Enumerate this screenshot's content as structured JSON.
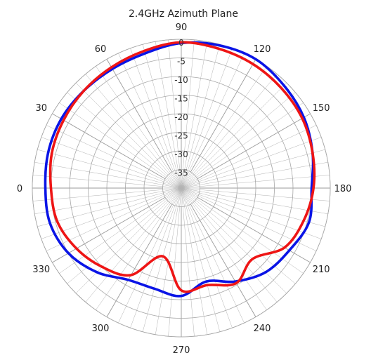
{
  "chart_data": {
    "type": "polar-line",
    "title": "2.4GHz Azimuth Plane",
    "angle_labels": [
      {
        "deg": 0,
        "text": "0"
      },
      {
        "deg": 30,
        "text": "30"
      },
      {
        "deg": 60,
        "text": "60"
      },
      {
        "deg": 90,
        "text": "90"
      },
      {
        "deg": 120,
        "text": "120"
      },
      {
        "deg": 150,
        "text": "150"
      },
      {
        "deg": 180,
        "text": "180"
      },
      {
        "deg": 210,
        "text": "210"
      },
      {
        "deg": 240,
        "text": "240"
      },
      {
        "deg": 270,
        "text": "270"
      },
      {
        "deg": 300,
        "text": "300"
      },
      {
        "deg": 330,
        "text": "330"
      }
    ],
    "radial_ticks": [
      "0",
      "-5",
      "-10",
      "-15",
      "-20",
      "-25",
      "-30",
      "-35"
    ],
    "radial_values": [
      0,
      -5,
      -10,
      -15,
      -20,
      -25,
      -30,
      -35
    ],
    "rlim": [
      -40,
      0
    ],
    "angle_direction": "0 at left, increasing clockwise",
    "grid": true,
    "spoke_step_deg": 5,
    "series": [
      {
        "color": "#0a14e6",
        "points": [
          [
            0,
            -3.5
          ],
          [
            15,
            -3.0
          ],
          [
            30,
            -2.8
          ],
          [
            45,
            -3.0
          ],
          [
            60,
            -3.0
          ],
          [
            75,
            -2.5
          ],
          [
            90,
            -1.0
          ],
          [
            105,
            -0.3
          ],
          [
            120,
            0.0
          ],
          [
            135,
            -1.0
          ],
          [
            150,
            -2.0
          ],
          [
            165,
            -3.5
          ],
          [
            180,
            -5.0
          ],
          [
            195,
            -4.5
          ],
          [
            210,
            -6.5
          ],
          [
            225,
            -8.0
          ],
          [
            240,
            -11.0
          ],
          [
            255,
            -14.0
          ],
          [
            270,
            -11.0
          ],
          [
            285,
            -12.0
          ],
          [
            300,
            -11.5
          ],
          [
            315,
            -8.0
          ],
          [
            330,
            -5.0
          ],
          [
            345,
            -3.5
          ],
          [
            360,
            -3.5
          ]
        ]
      },
      {
        "color": "#ee1515",
        "points": [
          [
            0,
            -5.0
          ],
          [
            15,
            -4.0
          ],
          [
            30,
            -3.5
          ],
          [
            45,
            -3.0
          ],
          [
            60,
            -2.5
          ],
          [
            75,
            -1.8
          ],
          [
            90,
            -0.8
          ],
          [
            105,
            -1.2
          ],
          [
            120,
            -1.5
          ],
          [
            135,
            -2.0
          ],
          [
            150,
            -2.5
          ],
          [
            165,
            -3.5
          ],
          [
            180,
            -4.5
          ],
          [
            195,
            -6.0
          ],
          [
            210,
            -8.0
          ],
          [
            225,
            -13.0
          ],
          [
            240,
            -10.5
          ],
          [
            255,
            -13.0
          ],
          [
            270,
            -12.5
          ],
          [
            285,
            -21.0
          ],
          [
            300,
            -13.0
          ],
          [
            315,
            -10.0
          ],
          [
            330,
            -7.5
          ],
          [
            345,
            -5.5
          ],
          [
            360,
            -5.0
          ]
        ]
      }
    ]
  }
}
